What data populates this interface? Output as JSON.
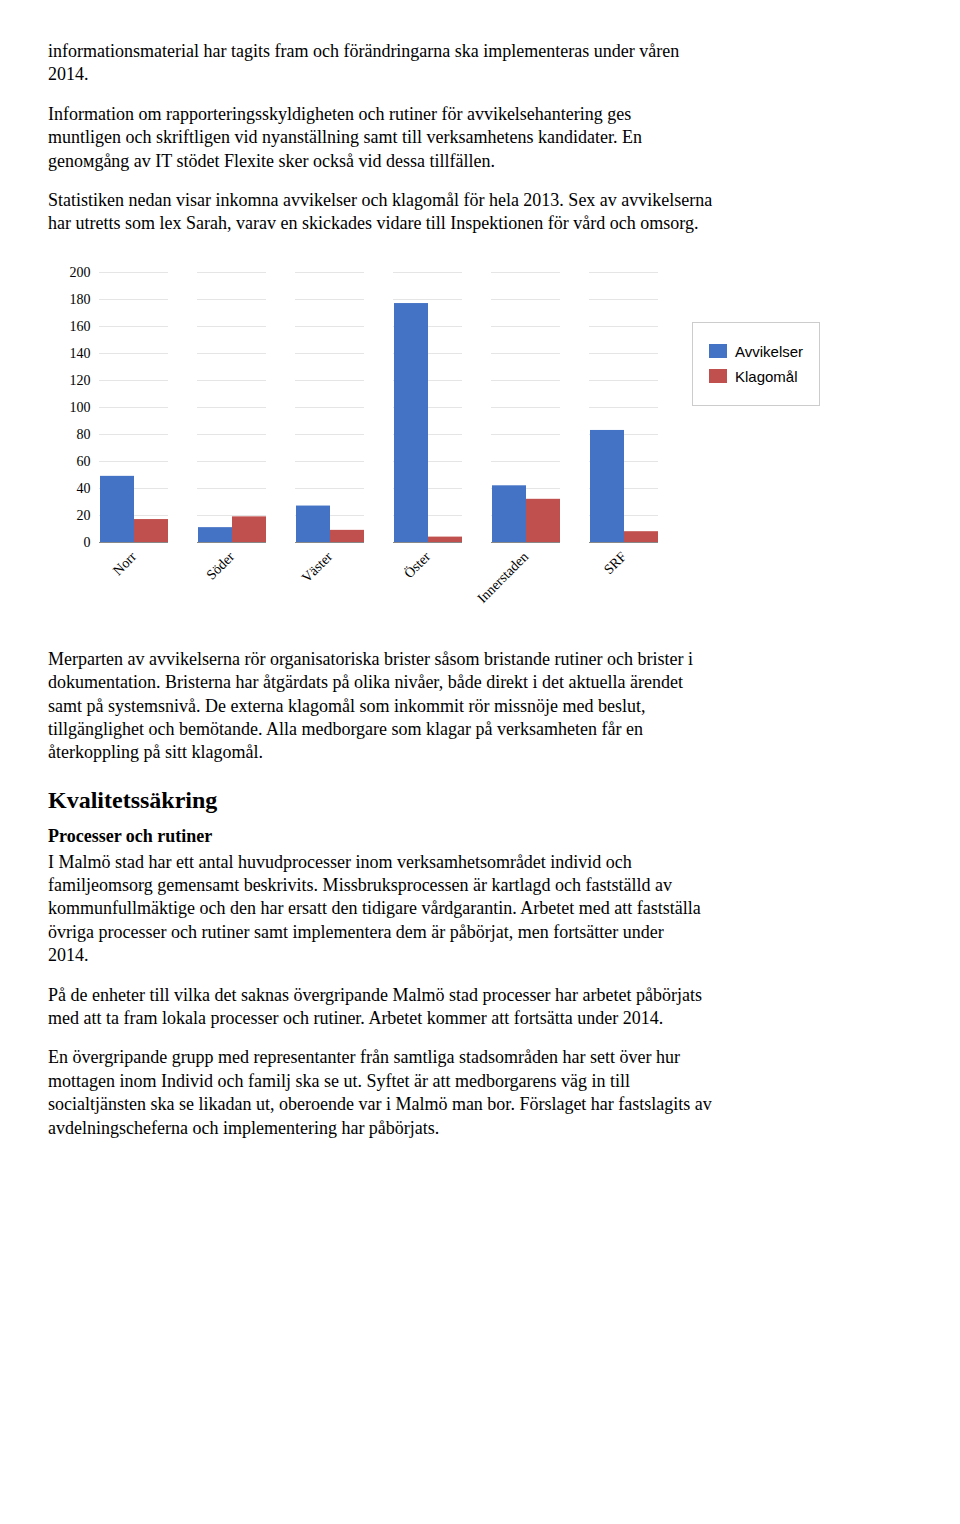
{
  "chart_data": {
    "type": "bar",
    "categories": [
      "Norr",
      "Söder",
      "Väster",
      "Öster",
      "Innerstaden",
      "SRF"
    ],
    "series": [
      {
        "name": "Avvikelser",
        "color": "#4472C4",
        "values": [
          49,
          11,
          27,
          177,
          42,
          83
        ]
      },
      {
        "name": "Klagomål",
        "color": "#C0504D",
        "values": [
          17,
          19,
          9,
          4,
          32,
          8
        ]
      }
    ],
    "ylim": [
      0,
      200
    ],
    "yticks": [
      0,
      20,
      40,
      60,
      80,
      100,
      120,
      140,
      160,
      180,
      200
    ],
    "grid": true,
    "legend": "right",
    "annotations": [
      "informationsmaterial har tagits fram och förändringarna ska implementeras under våren\n2014.",
      "Information om rapporteringsskyldigheten och rutiner för avvikelsehantering ges\nmuntligen och skriftligen vid nyanställning samt till verksamhetens kandidater. En\ngenoмgång av IT stödet Flexite sker också vid dessa tillfällen.",
      "Statistiken nedan visar inkomna avvikelser och klagomål för hela 2013. Sex av avvikelserna\nhar utretts som lex Sarah, varav en skickades vidare till Inspektionen för vård och omsorg.",
      "Merparten av avvikelserna rör organisatoriska brister såsom bristande rutiner och brister i\ndokumentation. Bristerna har åtgärdats på olika nivåer, både direkt i det aktuella ärendet\nsamt på systemsnivå. De externa klagomål som inkommit rör missnöje med beslut,\ntillgänglighet och bemötande. Alla medborgare som klagar på verksamheten får en\nåterkoppling på sitt klagomål.",
      "Kvalitetssäkring",
      "Processer och rutiner",
      "I Malmö stad har ett antal huvudprocesser inom verksamhetsområdet individ och\nfamiljeomsorg gemensamt beskrivits. Missbruksprocessen är kartlagd och fastställd av\nkommunfullmäktige och den har ersatt den tidigare vårdgarantin. Arbetet med att fastställa\növriga processer och rutiner samt implementera dem är påbörjat, men fortsätter under\n2014.",
      "På de enheter till vilka det saknas övergripande Malmö stad processer har arbetet påbörjats\nmed att ta fram lokala processer och rutiner. Arbetet kommer att fortsätta under 2014.",
      "En övergripande grupp med representanter från samtliga stadsområden har sett över hur\nmottagen inom Individ och familj ska se ut. Syftet är att medborgarens väg in till\nsocialtjänsten ska se likadan ut, oberoende var i Malmö man bor. Förslaget har fastslagits av\navdelningscheferna och implementering har påbörjats."
    ]
  }
}
